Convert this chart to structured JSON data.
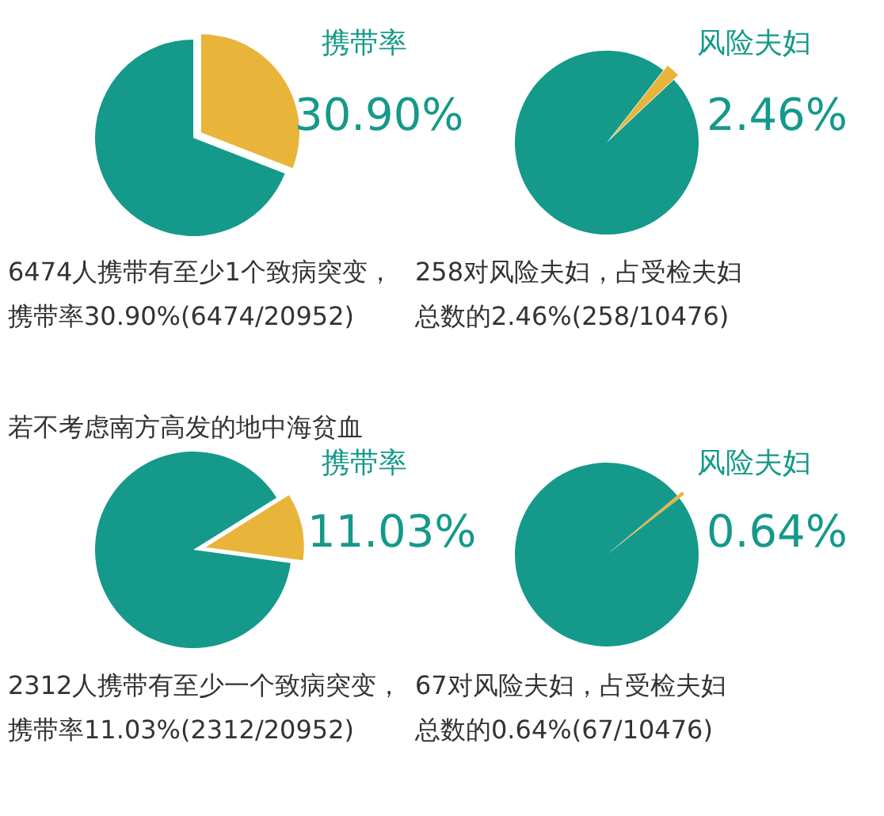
{
  "chart_data": [
    {
      "type": "pie",
      "categories": [
        "携带率",
        null
      ],
      "values": [
        30.9,
        69.1
      ],
      "colors": [
        "#e8b53a",
        "#14998a"
      ],
      "value_labels": [
        "30.90%",
        null
      ],
      "annotations": [
        "6474人携带有至少1个致病突变，",
        "携带率30.90%(6474/20952)"
      ]
    },
    {
      "type": "pie",
      "categories": [
        "风险夫妇",
        null
      ],
      "values": [
        2.46,
        97.54
      ],
      "colors": [
        "#e8b53a",
        "#14998a"
      ],
      "value_labels": [
        "2.46%",
        null
      ],
      "annotations": [
        "258对风险夫妇，占受检夫妇",
        "总数的2.46%(258/10476)"
      ]
    },
    {
      "type": "pie",
      "categories": [
        "携带率",
        null
      ],
      "values": [
        11.03,
        88.97
      ],
      "colors": [
        "#e8b53a",
        "#14998a"
      ],
      "value_labels": [
        "11.03%",
        null
      ],
      "annotations": [
        "若不考虑南方高发的地中海贫血",
        "2312人携带有至少一个致病突变，",
        "携带率11.03%(2312/20952)"
      ]
    },
    {
      "type": "pie",
      "categories": [
        "风险夫妇",
        null
      ],
      "values": [
        0.64,
        99.36
      ],
      "colors": [
        "#e8b53a",
        "#14998a"
      ],
      "value_labels": [
        "0.64%",
        null
      ],
      "annotations": [
        "67对风险夫妇，占受检夫妇",
        "总数的0.64%(67/10476)"
      ]
    }
  ]
}
